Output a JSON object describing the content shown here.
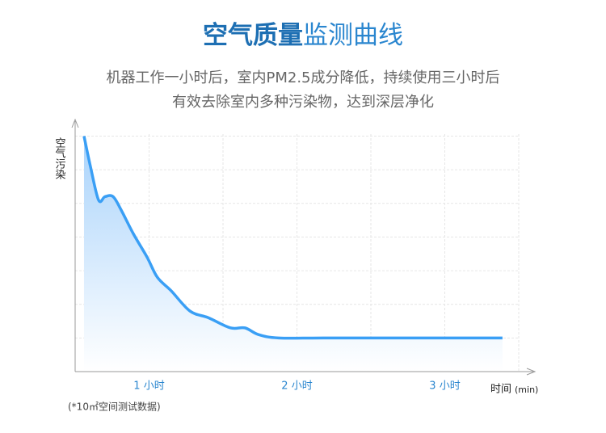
{
  "chart_data": {
    "type": "area",
    "title_emphasis": "空气质量",
    "title_rest": "监测曲线",
    "subtitle": [
      "机器工作一小时后，室内PM2.5成分降低，持续使用三小时后",
      "有效去除室内多种污染物，达到深层净化"
    ],
    "y_label": "空气污染",
    "x_label": "时间",
    "x_unit": "(min)",
    "footnote": "(*10㎡空间测试数据)",
    "x": [
      33.6,
      36.2,
      39.5,
      42.1,
      45.4,
      48.7,
      53.6,
      59.2,
      63.4,
      69.0,
      76.6,
      84.1,
      93.0,
      98.9,
      104.4,
      112.6,
      130.7,
      163.4,
      203.4
    ],
    "values": [
      7.0,
      6.1,
      5.1,
      5.2,
      5.2,
      4.8,
      4.1,
      3.4,
      2.8,
      2.4,
      1.8,
      1.6,
      1.3,
      1.3,
      1.1,
      1.0,
      1.0,
      1.0,
      1.0
    ],
    "color": "#3a9ff5",
    "xlim": [
      30,
      210
    ],
    "ylim": [
      0,
      7.3
    ],
    "xticks": [
      {
        "value": 60,
        "label": "1 小时"
      },
      {
        "value": 120,
        "label": "2 小时"
      },
      {
        "value": 180,
        "label": "3 小时"
      }
    ],
    "xminor": [
      90,
      150,
      210
    ],
    "ygrid": [
      1,
      2,
      3,
      4,
      5,
      6,
      7
    ],
    "grid": true
  }
}
